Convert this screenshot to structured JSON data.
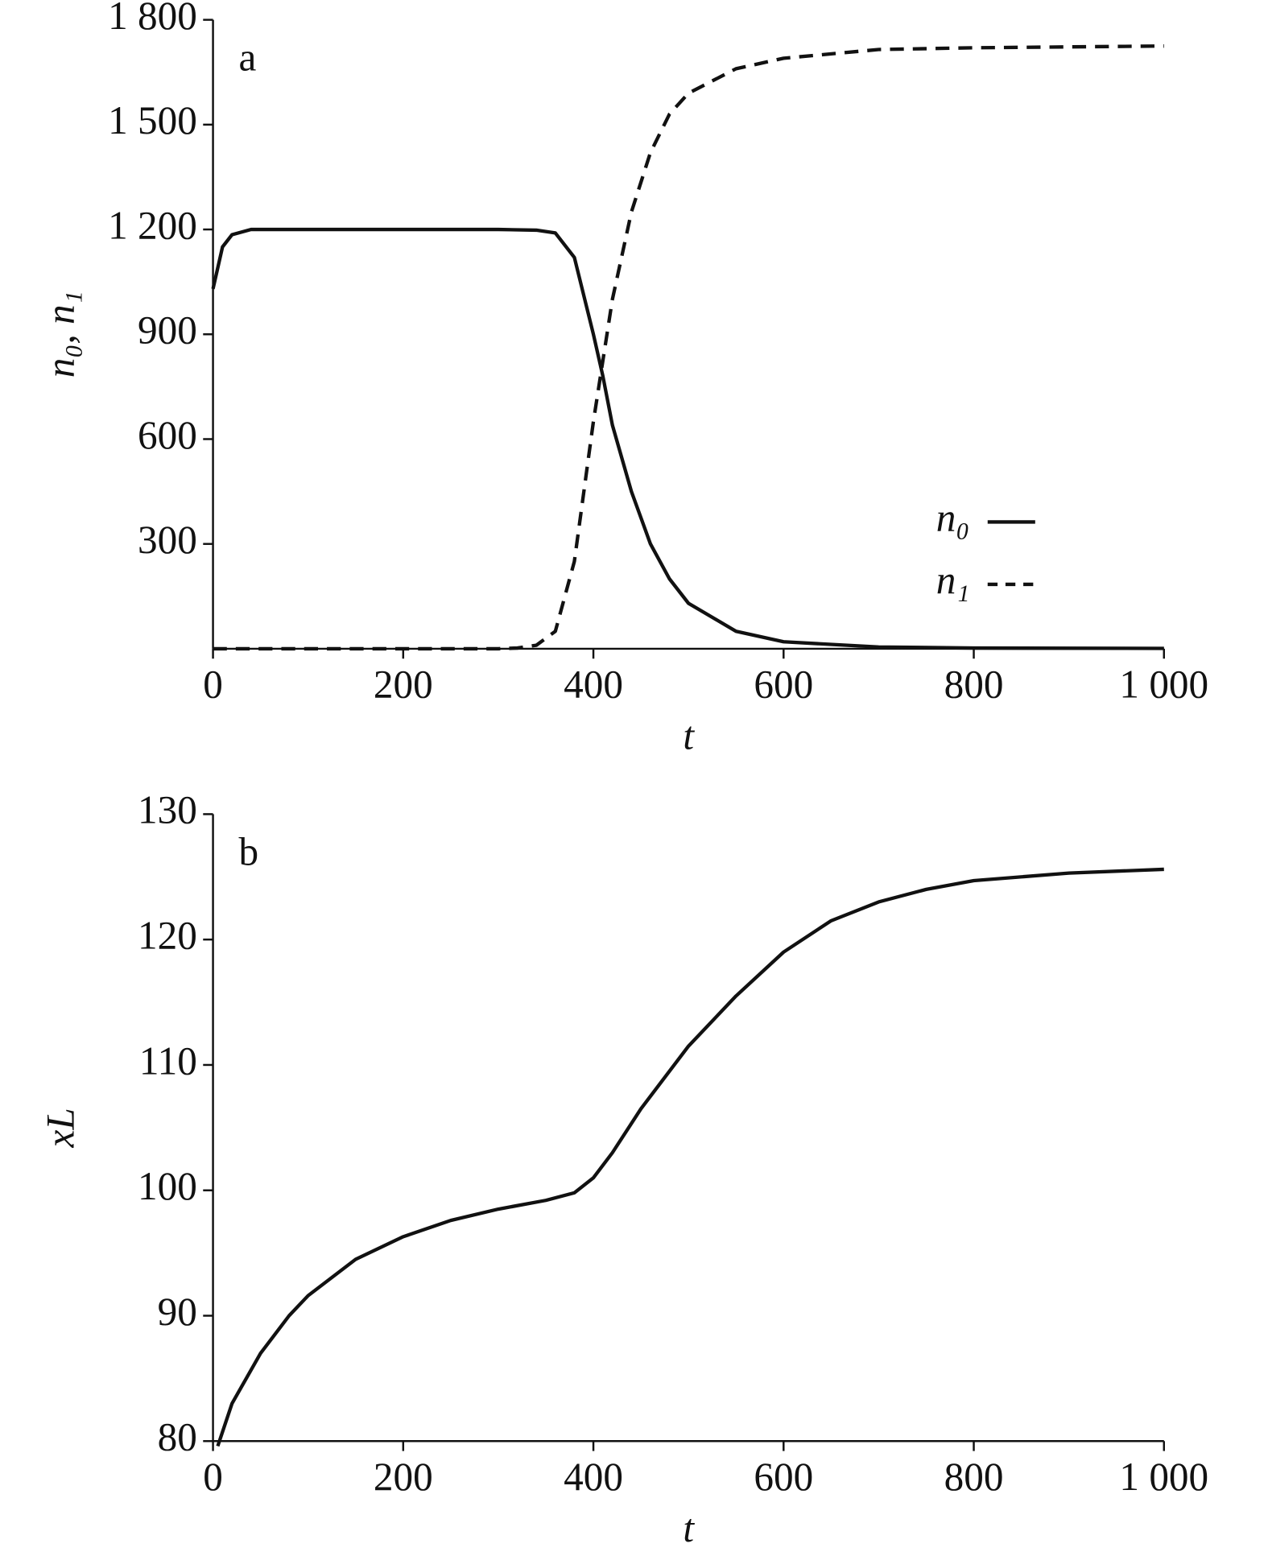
{
  "chart_data": [
    {
      "type": "line",
      "annotation": "a",
      "xlabel": "t",
      "ylabel": "n₀, n₁",
      "xlim": [
        0,
        1000
      ],
      "ylim": [
        0,
        1800
      ],
      "xticks": [
        0,
        200,
        400,
        600,
        800,
        {
          "value": 1000,
          "label": "1 000"
        }
      ],
      "yticks": [
        300,
        600,
        900,
        {
          "value": 1200,
          "label": "1 200"
        },
        {
          "value": 1500,
          "label": "1 500"
        },
        {
          "value": 1800,
          "label": "1 800"
        }
      ],
      "legend": "lower right",
      "grid": false,
      "series": [
        {
          "name": "n₀",
          "color": "#111111",
          "dash": false,
          "x": [
            0,
            10,
            20,
            40,
            100,
            200,
            300,
            340,
            360,
            380,
            400,
            410,
            420,
            440,
            460,
            480,
            500,
            550,
            600,
            700,
            800,
            1000
          ],
          "values": [
            1030,
            1150,
            1185,
            1200,
            1200,
            1200,
            1200,
            1198,
            1190,
            1120,
            900,
            780,
            640,
            450,
            300,
            200,
            130,
            50,
            20,
            5,
            2,
            1
          ]
        },
        {
          "name": "n₁",
          "color": "#111111",
          "dash": true,
          "x": [
            0,
            100,
            200,
            300,
            320,
            340,
            360,
            380,
            400,
            420,
            440,
            460,
            480,
            500,
            550,
            600,
            700,
            800,
            1000
          ],
          "values": [
            0,
            0,
            0,
            0,
            2,
            10,
            50,
            250,
            650,
            1000,
            1250,
            1420,
            1530,
            1590,
            1660,
            1690,
            1715,
            1720,
            1725
          ]
        }
      ]
    },
    {
      "type": "line",
      "annotation": "b",
      "xlabel": "t",
      "ylabel": "xL",
      "xlim": [
        0,
        1000
      ],
      "ylim": [
        80,
        130
      ],
      "xticks": [
        0,
        200,
        400,
        600,
        800,
        {
          "value": 1000,
          "label": "1 000"
        }
      ],
      "yticks": [
        80,
        90,
        100,
        110,
        120,
        130
      ],
      "grid": false,
      "series": [
        {
          "name": null,
          "color": "#111111",
          "dash": false,
          "x": [
            5,
            20,
            50,
            80,
            100,
            150,
            200,
            250,
            300,
            350,
            380,
            400,
            420,
            450,
            500,
            550,
            600,
            650,
            700,
            750,
            800,
            900,
            1000
          ],
          "values": [
            79.6,
            83,
            87,
            90,
            91.6,
            94.5,
            96.3,
            97.6,
            98.5,
            99.2,
            99.8,
            101,
            103,
            106.5,
            111.5,
            115.5,
            119,
            121.5,
            123,
            124,
            124.7,
            125.3,
            125.6
          ]
        }
      ]
    }
  ]
}
